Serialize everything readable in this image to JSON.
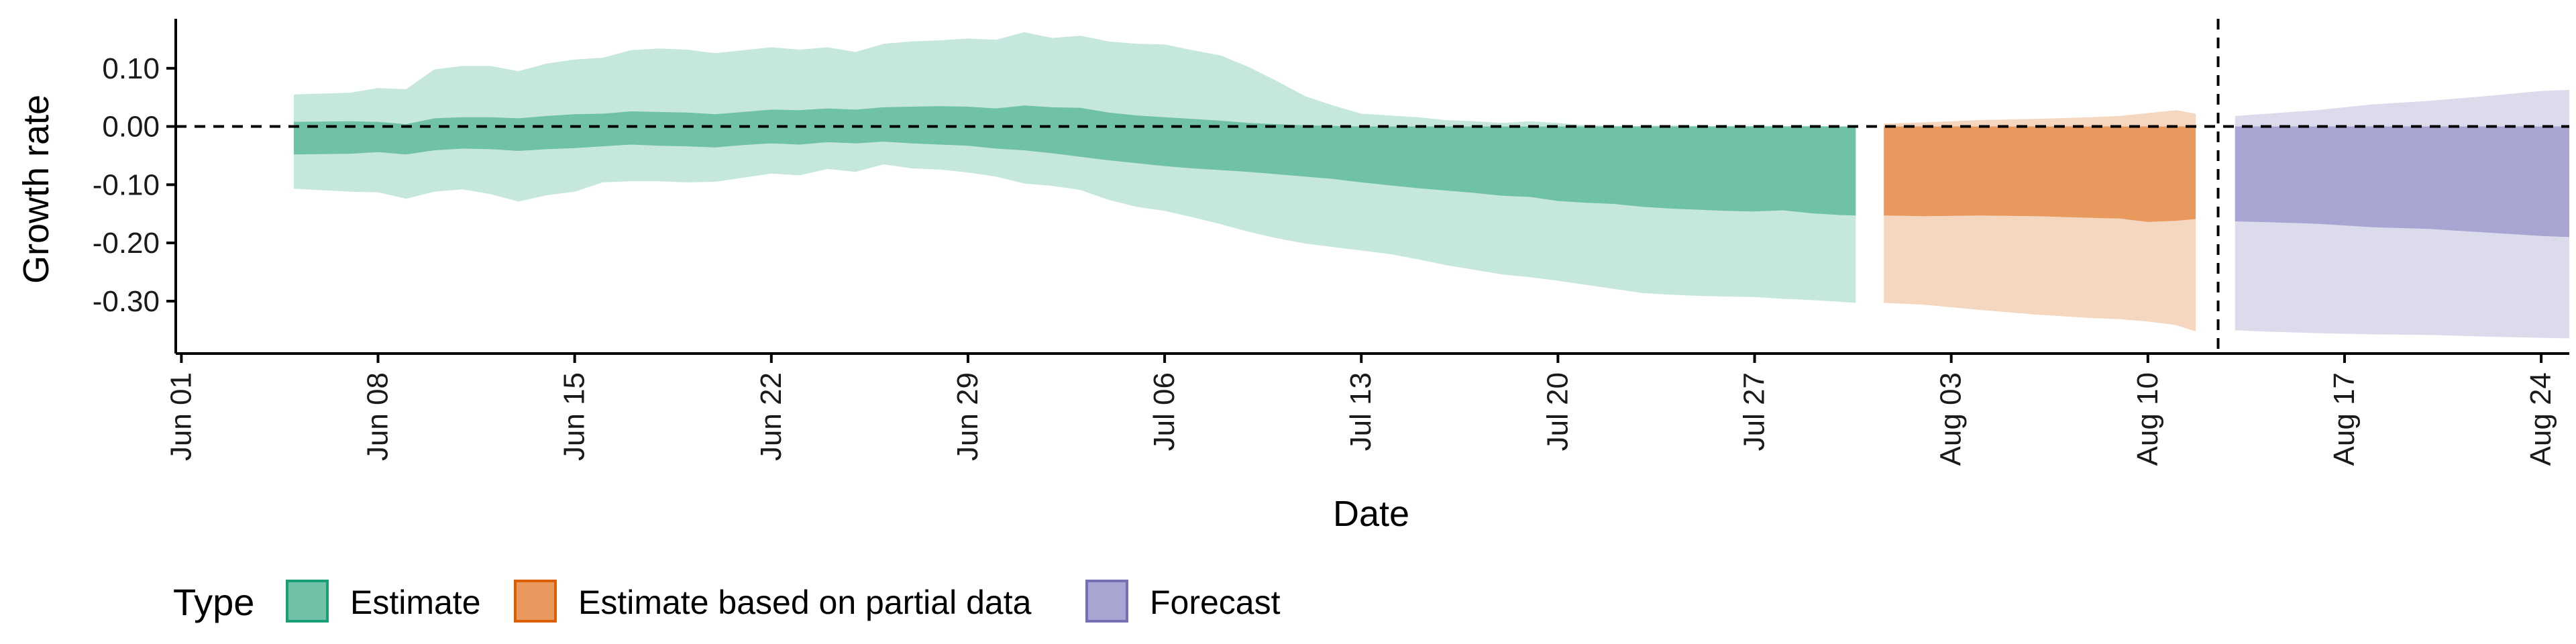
{
  "chart_data": {
    "type": "area",
    "title": "",
    "xlabel": "Date",
    "ylabel": "Growth rate",
    "ylim": [
      -0.39,
      0.185
    ],
    "xlim_days": [
      -0.2,
      85.0
    ],
    "x_origin": "Jun 01",
    "y_ticks": [
      0.1,
      0.0,
      -0.1,
      -0.2,
      -0.3
    ],
    "y_tick_labels": [
      "0.10",
      "0.00",
      "-0.10",
      "-0.20",
      "-0.30"
    ],
    "x_ticks": [
      0,
      7,
      14,
      21,
      28,
      35,
      42,
      49,
      56,
      63,
      70,
      77,
      84
    ],
    "x_tick_labels": [
      "Jun 01",
      "Jun 08",
      "Jun 15",
      "Jun 22",
      "Jun 29",
      "Jul 06",
      "Jul 13",
      "Jul 20",
      "Jul 27",
      "Aug 03",
      "Aug 10",
      "Aug 17",
      "Aug 24"
    ],
    "reference_lines": {
      "hline_y": 0.0,
      "vline_day": 72.5
    },
    "legend": {
      "title": "Type",
      "position": "bottom-left"
    },
    "series": [
      {
        "name": "Estimate",
        "color_inner": "#70c2a6",
        "color_outer": "#c6e7dd",
        "border": "#1b9e77",
        "x": [
          4,
          6,
          7,
          8,
          9,
          10,
          11,
          12,
          13,
          14,
          15,
          16,
          17,
          18,
          19,
          20,
          21,
          22,
          23,
          24,
          25,
          26,
          27,
          28,
          29,
          30,
          31,
          32,
          33,
          34,
          35,
          36,
          37,
          38,
          39,
          40,
          41,
          42,
          43,
          44,
          45,
          46,
          47,
          48,
          49,
          50,
          51,
          52,
          53,
          54,
          55,
          56,
          57,
          58,
          59,
          59.6
        ],
        "outer_upper": [
          0.055,
          0.058,
          0.066,
          0.064,
          0.098,
          0.104,
          0.104,
          0.095,
          0.108,
          0.115,
          0.118,
          0.131,
          0.134,
          0.132,
          0.126,
          0.131,
          0.136,
          0.132,
          0.136,
          0.128,
          0.142,
          0.146,
          0.148,
          0.151,
          0.149,
          0.162,
          0.152,
          0.156,
          0.146,
          0.142,
          0.141,
          0.131,
          0.122,
          0.102,
          0.078,
          0.052,
          0.036,
          0.022,
          0.019,
          0.016,
          0.011,
          0.009,
          0.006,
          0.009,
          0.006,
          0.002,
          0.001,
          0.001,
          0.002,
          0.001,
          0.001,
          0.001,
          0.001,
          0.001,
          0.0,
          0.0
        ],
        "inner_upper": [
          0.008,
          0.009,
          0.008,
          0.004,
          0.014,
          0.016,
          0.016,
          0.014,
          0.018,
          0.021,
          0.022,
          0.026,
          0.025,
          0.024,
          0.021,
          0.025,
          0.029,
          0.028,
          0.031,
          0.029,
          0.033,
          0.034,
          0.035,
          0.034,
          0.031,
          0.036,
          0.033,
          0.032,
          0.024,
          0.019,
          0.016,
          0.013,
          0.01,
          0.006,
          0.004,
          0.002,
          0.001,
          0.0,
          0.0,
          0.0,
          0.0,
          0.0,
          0.0,
          0.0,
          0.0,
          0.0,
          0.0,
          0.0,
          0.0,
          0.0,
          0.0,
          0.0,
          0.0,
          0.0,
          0.0,
          0.0
        ],
        "inner_lower": [
          -0.048,
          -0.047,
          -0.044,
          -0.048,
          -0.041,
          -0.038,
          -0.039,
          -0.042,
          -0.039,
          -0.037,
          -0.034,
          -0.031,
          -0.033,
          -0.034,
          -0.036,
          -0.032,
          -0.029,
          -0.031,
          -0.027,
          -0.029,
          -0.026,
          -0.029,
          -0.031,
          -0.033,
          -0.038,
          -0.041,
          -0.046,
          -0.052,
          -0.058,
          -0.063,
          -0.068,
          -0.072,
          -0.075,
          -0.078,
          -0.082,
          -0.086,
          -0.09,
          -0.096,
          -0.101,
          -0.106,
          -0.11,
          -0.114,
          -0.119,
          -0.121,
          -0.128,
          -0.131,
          -0.133,
          -0.138,
          -0.141,
          -0.143,
          -0.145,
          -0.146,
          -0.144,
          -0.149,
          -0.152,
          -0.153
        ],
        "outer_lower": [
          -0.107,
          -0.112,
          -0.113,
          -0.124,
          -0.112,
          -0.108,
          -0.116,
          -0.129,
          -0.118,
          -0.112,
          -0.096,
          -0.094,
          -0.094,
          -0.096,
          -0.095,
          -0.088,
          -0.081,
          -0.084,
          -0.073,
          -0.078,
          -0.065,
          -0.072,
          -0.074,
          -0.079,
          -0.086,
          -0.098,
          -0.102,
          -0.109,
          -0.126,
          -0.138,
          -0.145,
          -0.156,
          -0.168,
          -0.181,
          -0.192,
          -0.201,
          -0.207,
          -0.213,
          -0.219,
          -0.228,
          -0.238,
          -0.246,
          -0.254,
          -0.259,
          -0.265,
          -0.272,
          -0.279,
          -0.286,
          -0.289,
          -0.291,
          -0.292,
          -0.293,
          -0.296,
          -0.298,
          -0.301,
          -0.303
        ]
      },
      {
        "name": "Estimate based on partial data",
        "color_inner": "#e89a5e",
        "color_outer": "#f5d6bf",
        "border": "#d95f02",
        "x": [
          60.6,
          62,
          64,
          66,
          68,
          69,
          70,
          71,
          71.7
        ],
        "outer_upper": [
          0.005,
          0.007,
          0.011,
          0.013,
          0.016,
          0.018,
          0.023,
          0.028,
          0.022
        ],
        "inner_upper": [
          0.0,
          0.0,
          0.0,
          0.0,
          0.0,
          0.0,
          0.0,
          0.0,
          0.0
        ],
        "inner_lower": [
          -0.153,
          -0.154,
          -0.153,
          -0.154,
          -0.157,
          -0.158,
          -0.164,
          -0.162,
          -0.159
        ],
        "outer_lower": [
          -0.303,
          -0.306,
          -0.315,
          -0.323,
          -0.329,
          -0.331,
          -0.335,
          -0.341,
          -0.352
        ]
      },
      {
        "name": "Forecast",
        "color_inner": "#a8a5d2",
        "color_outer": "#dcdbec",
        "border": "#7570b3",
        "x": [
          73.1,
          74,
          76,
          78,
          80,
          82,
          84,
          85
        ],
        "outer_upper": [
          0.018,
          0.021,
          0.028,
          0.038,
          0.044,
          0.052,
          0.061,
          0.063
        ],
        "inner_upper": [
          0.0,
          0.0,
          0.0,
          0.0,
          0.0,
          0.0,
          0.0,
          0.0
        ],
        "inner_lower": [
          -0.163,
          -0.164,
          -0.167,
          -0.173,
          -0.176,
          -0.182,
          -0.188,
          -0.19
        ],
        "outer_lower": [
          -0.35,
          -0.352,
          -0.355,
          -0.357,
          -0.358,
          -0.361,
          -0.363,
          -0.364
        ]
      }
    ]
  }
}
